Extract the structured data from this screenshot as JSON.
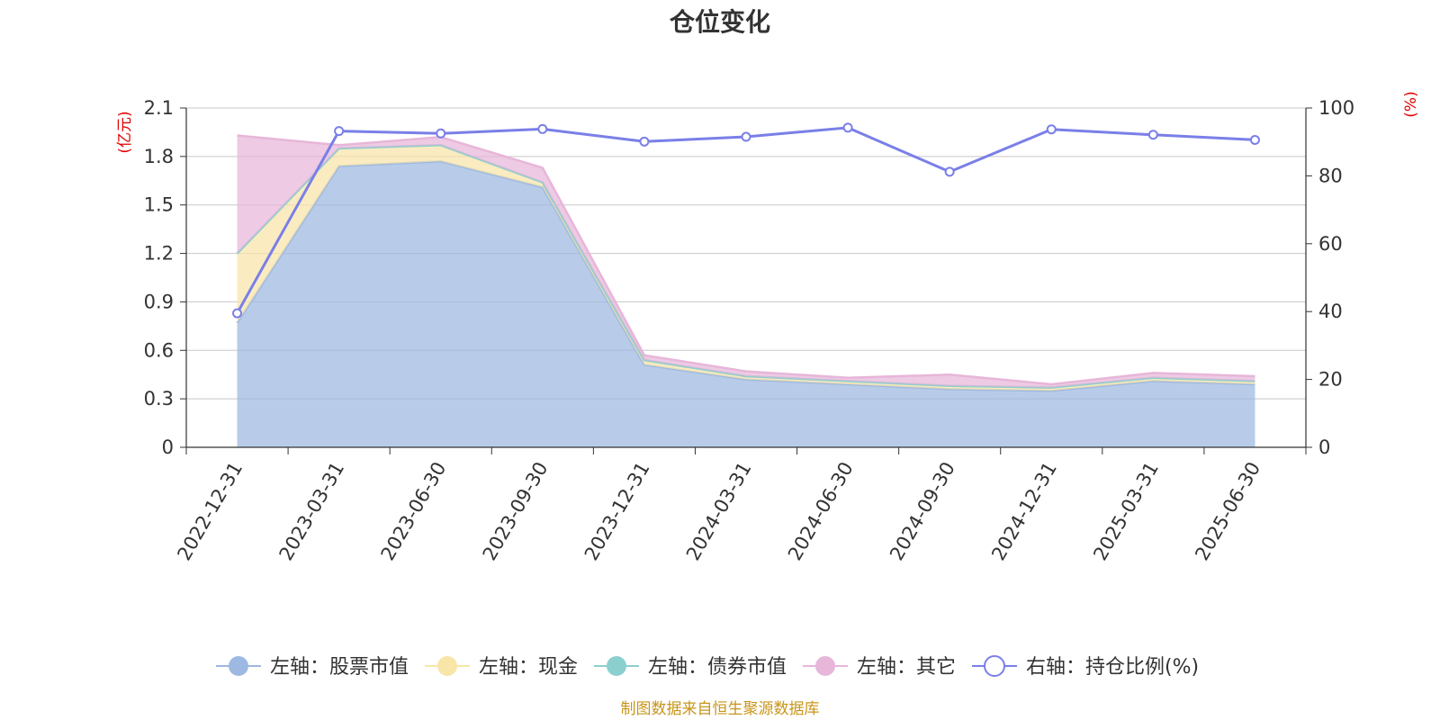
{
  "title": "仓位变化",
  "source": "制图数据来自恒生聚源数据库",
  "chart_data": {
    "type": "area",
    "categories": [
      "2022-12-31",
      "2023-03-31",
      "2023-06-30",
      "2023-09-30",
      "2023-12-31",
      "2024-03-31",
      "2024-06-30",
      "2024-09-30",
      "2024-12-31",
      "2025-03-31",
      "2025-06-30"
    ],
    "left_axis": {
      "unit": "(亿元)",
      "ylim": [
        0,
        2.1
      ],
      "ticks": [
        "0",
        "0.3",
        "0.6",
        "0.9",
        "1.2",
        "1.5",
        "1.8",
        "2.1"
      ]
    },
    "right_axis": {
      "unit": "(%)",
      "ylim": [
        0,
        100
      ],
      "ticks": [
        "0",
        "20",
        "40",
        "60",
        "80",
        "100"
      ]
    },
    "stacked": true,
    "grid": true,
    "legend_position": "bottom",
    "series": [
      {
        "name": "左轴：股票市值",
        "axis": "left",
        "color": "#9db8e1",
        "values": [
          0.77,
          1.74,
          1.77,
          1.61,
          0.51,
          0.42,
          0.39,
          0.36,
          0.35,
          0.41,
          0.39
        ]
      },
      {
        "name": "左轴：现金",
        "axis": "left",
        "color": "#f8e5a8",
        "values": [
          0.43,
          0.11,
          0.1,
          0.03,
          0.03,
          0.02,
          0.02,
          0.02,
          0.02,
          0.02,
          0.02
        ]
      },
      {
        "name": "左轴：债券市值",
        "axis": "left",
        "color": "#8ccfcf",
        "values": [
          0,
          0,
          0,
          0,
          0,
          0,
          0,
          0,
          0,
          0,
          0
        ]
      },
      {
        "name": "左轴：其它",
        "axis": "left",
        "color": "#e7b6d9",
        "values": [
          0.73,
          0.02,
          0.05,
          0.09,
          0.03,
          0.03,
          0.02,
          0.07,
          0.02,
          0.03,
          0.03
        ]
      },
      {
        "name": "右轴：持仓比例(%)",
        "axis": "right",
        "type": "line",
        "color": "#7a7fe8",
        "values": [
          39.5,
          93.2,
          92.5,
          93.8,
          90.1,
          91.5,
          94.2,
          81.2,
          93.7,
          92.1,
          90.6
        ]
      }
    ]
  }
}
